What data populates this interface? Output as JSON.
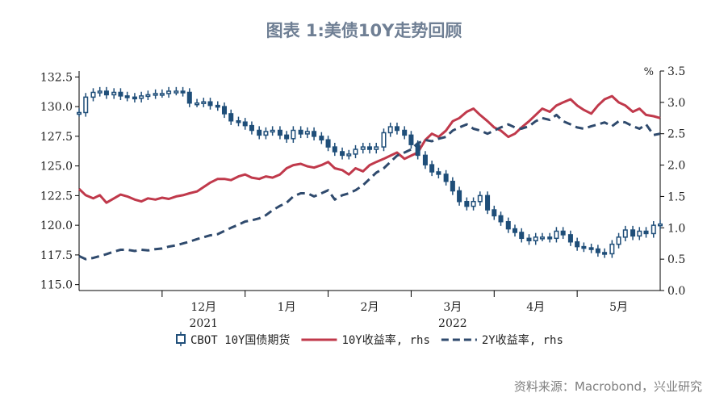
{
  "title": "图表 1:美债10Y走势回顾",
  "source": "资料来源：Macrobond，兴业研究",
  "chart_data": {
    "type": "line",
    "left_axis": {
      "ticks": [
        "115.0",
        "117.5",
        "120.0",
        "122.5",
        "125.0",
        "127.5",
        "130.0",
        "132.5"
      ],
      "ylim": [
        114.5,
        133.0
      ]
    },
    "right_axis": {
      "unit": "%",
      "ticks": [
        "0.0",
        "0.5",
        "1.0",
        "1.5",
        "2.0",
        "2.5",
        "3.0",
        "3.5"
      ],
      "ylim": [
        0.0,
        3.5
      ]
    },
    "x_axis": {
      "month_labels": [
        "12月",
        "1月",
        "2月",
        "3月",
        "4月",
        "5月"
      ],
      "month_positions": [
        1.5,
        2.5,
        3.5,
        4.5,
        5.5,
        6.5
      ],
      "month_separators": [
        1,
        2,
        3,
        4,
        5,
        6
      ],
      "year_labels": [
        {
          "label": "2021",
          "pos": 1.5
        },
        {
          "label": "2022",
          "pos": 4.5
        }
      ],
      "xlim": [
        0.0,
        7.0
      ]
    },
    "legend": [
      {
        "label": "CBOT 10Y国债期货",
        "style": "candle",
        "color": "#1f4e79"
      },
      {
        "label": "10Y收益率, rhs",
        "style": "solid",
        "color": "#c0394b"
      },
      {
        "label": "2Y收益率, rhs",
        "style": "dashed",
        "color": "#2f4a6d"
      }
    ],
    "series": [
      {
        "name": "10Y收益率, rhs",
        "axis": "right",
        "color": "#c0394b",
        "x": [
          0.0,
          0.08,
          0.17,
          0.25,
          0.33,
          0.42,
          0.5,
          0.58,
          0.67,
          0.75,
          0.83,
          0.92,
          1.0,
          1.08,
          1.17,
          1.25,
          1.33,
          1.42,
          1.5,
          1.58,
          1.67,
          1.75,
          1.83,
          1.92,
          2.0,
          2.08,
          2.17,
          2.25,
          2.33,
          2.42,
          2.5,
          2.58,
          2.67,
          2.75,
          2.83,
          2.92,
          3.0,
          3.08,
          3.17,
          3.25,
          3.33,
          3.42,
          3.5,
          3.58,
          3.67,
          3.75,
          3.83,
          3.92,
          4.0,
          4.08,
          4.17,
          4.25,
          4.33,
          4.42,
          4.5,
          4.58,
          4.67,
          4.75,
          4.83,
          4.92,
          5.0,
          5.08,
          5.17,
          5.25,
          5.33,
          5.42,
          5.5,
          5.58,
          5.67,
          5.75,
          5.83,
          5.92,
          6.0,
          6.08,
          6.17,
          6.25,
          6.33,
          6.42,
          6.5,
          6.58,
          6.67,
          6.75,
          6.83,
          6.92,
          7.0
        ],
        "y": [
          1.62,
          1.52,
          1.47,
          1.52,
          1.4,
          1.47,
          1.53,
          1.5,
          1.45,
          1.42,
          1.47,
          1.45,
          1.48,
          1.46,
          1.5,
          1.52,
          1.55,
          1.58,
          1.65,
          1.72,
          1.78,
          1.78,
          1.76,
          1.82,
          1.85,
          1.8,
          1.78,
          1.82,
          1.8,
          1.85,
          1.95,
          2.0,
          2.02,
          1.98,
          1.96,
          2.0,
          2.05,
          1.95,
          1.92,
          1.85,
          1.95,
          1.9,
          2.0,
          2.05,
          2.1,
          2.15,
          2.2,
          2.1,
          2.15,
          2.2,
          2.4,
          2.5,
          2.45,
          2.55,
          2.7,
          2.75,
          2.85,
          2.9,
          2.8,
          2.7,
          2.6,
          2.55,
          2.45,
          2.5,
          2.6,
          2.7,
          2.8,
          2.9,
          2.85,
          2.95,
          3.0,
          3.05,
          2.95,
          2.88,
          2.82,
          2.95,
          3.05,
          3.1,
          3.0,
          2.95,
          2.85,
          2.9,
          2.8,
          2.78,
          2.75
        ]
      },
      {
        "name": "2Y收益率, rhs",
        "axis": "right",
        "color": "#2f4a6d",
        "x": [
          0.0,
          0.08,
          0.17,
          0.25,
          0.33,
          0.42,
          0.5,
          0.58,
          0.67,
          0.75,
          0.83,
          0.92,
          1.0,
          1.08,
          1.17,
          1.25,
          1.33,
          1.42,
          1.5,
          1.58,
          1.67,
          1.75,
          1.83,
          1.92,
          2.0,
          2.08,
          2.17,
          2.25,
          2.33,
          2.42,
          2.5,
          2.58,
          2.67,
          2.75,
          2.83,
          2.92,
          3.0,
          3.08,
          3.17,
          3.25,
          3.33,
          3.42,
          3.5,
          3.58,
          3.67,
          3.75,
          3.83,
          3.92,
          4.0,
          4.08,
          4.17,
          4.25,
          4.33,
          4.42,
          4.5,
          4.58,
          4.67,
          4.75,
          4.83,
          4.92,
          5.0,
          5.08,
          5.17,
          5.25,
          5.33,
          5.42,
          5.5,
          5.58,
          5.67,
          5.75,
          5.83,
          5.92,
          6.0,
          6.08,
          6.17,
          6.25,
          6.33,
          6.42,
          6.5,
          6.58,
          6.67,
          6.75,
          6.83,
          6.92,
          7.0
        ],
        "y": [
          0.55,
          0.5,
          0.52,
          0.55,
          0.58,
          0.62,
          0.65,
          0.65,
          0.63,
          0.65,
          0.64,
          0.66,
          0.67,
          0.7,
          0.72,
          0.75,
          0.78,
          0.82,
          0.85,
          0.88,
          0.9,
          0.95,
          1.0,
          1.05,
          1.1,
          1.12,
          1.15,
          1.2,
          1.28,
          1.35,
          1.4,
          1.5,
          1.55,
          1.55,
          1.5,
          1.55,
          1.6,
          1.45,
          1.52,
          1.55,
          1.6,
          1.68,
          1.78,
          1.88,
          1.95,
          2.05,
          2.15,
          2.2,
          2.25,
          2.35,
          2.4,
          2.38,
          2.42,
          2.45,
          2.55,
          2.6,
          2.65,
          2.58,
          2.55,
          2.5,
          2.55,
          2.6,
          2.65,
          2.6,
          2.58,
          2.62,
          2.7,
          2.75,
          2.72,
          2.8,
          2.7,
          2.65,
          2.6,
          2.58,
          2.62,
          2.65,
          2.68,
          2.62,
          2.7,
          2.68,
          2.62,
          2.58,
          2.65,
          2.48,
          2.5
        ]
      },
      {
        "name": "CBOT 10Y国债期货",
        "axis": "left",
        "color": "#1f4e79",
        "x": [
          0.0,
          0.08,
          0.17,
          0.25,
          0.33,
          0.42,
          0.5,
          0.58,
          0.67,
          0.75,
          0.83,
          0.92,
          1.0,
          1.08,
          1.17,
          1.25,
          1.33,
          1.42,
          1.5,
          1.58,
          1.67,
          1.75,
          1.83,
          1.92,
          2.0,
          2.08,
          2.17,
          2.25,
          2.33,
          2.42,
          2.5,
          2.58,
          2.67,
          2.75,
          2.83,
          2.92,
          3.0,
          3.08,
          3.17,
          3.25,
          3.33,
          3.42,
          3.5,
          3.58,
          3.67,
          3.75,
          3.83,
          3.92,
          4.0,
          4.08,
          4.17,
          4.25,
          4.33,
          4.42,
          4.5,
          4.58,
          4.67,
          4.75,
          4.83,
          4.92,
          5.0,
          5.08,
          5.17,
          5.25,
          5.33,
          5.42,
          5.5,
          5.58,
          5.67,
          5.75,
          5.83,
          5.92,
          6.0,
          6.08,
          6.17,
          6.25,
          6.33,
          6.42,
          6.5,
          6.58,
          6.67,
          6.75,
          6.83,
          6.92,
          7.0
        ],
        "y": [
          129.5,
          130.8,
          131.2,
          131.3,
          131.0,
          131.2,
          130.9,
          130.8,
          130.7,
          130.9,
          131.0,
          131.1,
          131.1,
          131.3,
          131.3,
          131.2,
          130.3,
          130.3,
          130.4,
          130.1,
          130.0,
          129.4,
          128.8,
          128.7,
          128.4,
          128.0,
          127.6,
          127.9,
          128.0,
          127.6,
          127.3,
          128.0,
          127.7,
          127.9,
          127.5,
          127.2,
          126.6,
          126.2,
          125.9,
          126.0,
          126.4,
          126.6,
          126.4,
          126.6,
          127.8,
          128.3,
          128.0,
          127.6,
          126.8,
          125.9,
          125.1,
          124.5,
          124.3,
          123.7,
          122.9,
          122.0,
          121.6,
          122.0,
          122.5,
          121.3,
          120.8,
          120.3,
          119.7,
          119.4,
          118.9,
          118.7,
          119.0,
          119.0,
          118.9,
          119.5,
          119.2,
          118.6,
          118.2,
          118.1,
          118.0,
          117.7,
          117.6,
          118.4,
          119.0,
          119.6,
          119.1,
          119.5,
          119.3,
          120.0,
          120.1
        ]
      }
    ]
  }
}
